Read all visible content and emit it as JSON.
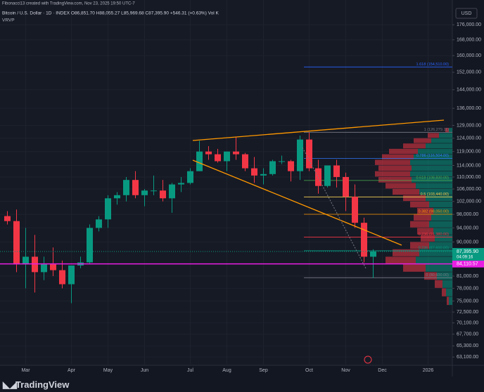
{
  "header": {
    "credit": "Fibonacci13 created with TradingView.com, Nov 23, 2025 19:50 UTC-7",
    "symbol": "Bitcoin / U.S. Dollar · 1D · INDEX  O86,851.70  H88,055.27  L85,969.68  C87,395.90  +546.31 (+0.63%)  Vol  K",
    "indicator": "VRVP",
    "currency": "USD",
    "brand": "TradingView"
  },
  "chart_data": {
    "type": "candlestick",
    "log_scale": true,
    "grid": true,
    "up_color": "#089981",
    "down_color": "#f23645",
    "categories": [
      null,
      null,
      "Mar",
      null,
      null,
      null,
      null,
      "Apr",
      null,
      null,
      null,
      "May",
      null,
      null,
      null,
      "Jun",
      null,
      null,
      null,
      null,
      "Jul",
      null,
      null,
      null,
      "Aug",
      null,
      null,
      null,
      "Sep",
      null,
      null,
      null,
      null,
      "Oct",
      null,
      null,
      null,
      "Nov",
      null,
      null,
      null,
      "Dec",
      null,
      null,
      null,
      null,
      "2026"
    ],
    "open": [
      97500,
      96000,
      84000,
      86000,
      82000,
      84000,
      82500,
      79000,
      83700,
      84500,
      94000,
      96500,
      103000,
      104000,
      109000,
      104000,
      105500,
      105500,
      103000,
      107500,
      108000,
      112000,
      119000,
      118000,
      115500,
      119000,
      118000,
      113000,
      110500,
      111000,
      115500,
      115500,
      112000,
      123500,
      113000,
      107000,
      114000,
      110000,
      103500,
      95500,
      86000,
      null,
      null,
      null,
      null,
      null,
      null
    ],
    "high": [
      99000,
      99500,
      94000,
      92000,
      86000,
      88500,
      85000,
      83000,
      86000,
      95000,
      97500,
      104000,
      105000,
      110000,
      112000,
      106000,
      110500,
      109000,
      108000,
      110000,
      113000,
      123000,
      121000,
      120000,
      119000,
      124500,
      118500,
      117000,
      113000,
      116000,
      117500,
      116000,
      125000,
      126200,
      116000,
      114000,
      116000,
      111500,
      107500,
      97000,
      88000,
      null,
      null,
      null,
      null,
      null,
      null
    ],
    "low": [
      95000,
      82000,
      78000,
      77000,
      80000,
      81000,
      78000,
      74500,
      83000,
      84000,
      93000,
      94000,
      101000,
      102000,
      103000,
      100500,
      104000,
      102000,
      98500,
      105000,
      107500,
      112000,
      116000,
      115000,
      112000,
      116000,
      112000,
      108000,
      107500,
      110500,
      114500,
      108500,
      109000,
      112000,
      104500,
      106500,
      106500,
      99000,
      94000,
      84500,
      80500,
      null,
      null,
      null,
      null,
      null,
      null
    ],
    "close": [
      96000,
      84000,
      86000,
      82000,
      84000,
      82500,
      79000,
      83700,
      84500,
      94000,
      96500,
      103000,
      104000,
      109000,
      104000,
      105500,
      105500,
      103000,
      107500,
      108000,
      112000,
      119000,
      118000,
      115500,
      119000,
      118000,
      113000,
      110500,
      111000,
      115500,
      115500,
      112000,
      123500,
      113000,
      107000,
      114000,
      110000,
      103500,
      95500,
      86000,
      87395.9,
      null,
      null,
      null,
      null,
      null,
      null
    ],
    "ylim": [
      61500,
      190000
    ],
    "yticks": [
      {
        "value": 176000,
        "label": "176,000.00"
      },
      {
        "value": 168000,
        "label": "168,000.00"
      },
      {
        "value": 160000,
        "label": "160,000.00"
      },
      {
        "value": 152000,
        "label": "152,000.00"
      },
      {
        "value": 144000,
        "label": "144,000.00"
      },
      {
        "value": 136000,
        "label": "136,000.00"
      },
      {
        "value": 129000,
        "label": "129,000.00"
      },
      {
        "value": 124000,
        "label": "124,000.00"
      },
      {
        "value": 119000,
        "label": "119,000.00"
      },
      {
        "value": 114000,
        "label": "114,000.00"
      },
      {
        "value": 110000,
        "label": "110,000.00"
      },
      {
        "value": 106000,
        "label": "106,000.00"
      },
      {
        "value": 102000,
        "label": "102,000.00"
      },
      {
        "value": 98000,
        "label": "98,000.00"
      },
      {
        "value": 94000,
        "label": "94,000.00"
      },
      {
        "value": 90000,
        "label": "90,000.00"
      },
      {
        "value": 81000,
        "label": "81,000.00"
      },
      {
        "value": 78000,
        "label": "78,000.00"
      },
      {
        "value": 75000,
        "label": "75,000.00"
      },
      {
        "value": 72500,
        "label": "72,500.00"
      },
      {
        "value": 70100,
        "label": "70,100.00"
      },
      {
        "value": 67700,
        "label": "67,700.00"
      },
      {
        "value": 65300,
        "label": "65,300.00"
      },
      {
        "value": 63100,
        "label": "63,100.00"
      }
    ],
    "fib_levels": [
      {
        "label": "1.618 (154,510.00)",
        "value": 154510,
        "color": "#2962ff"
      },
      {
        "label": "1 (126,279.11)",
        "value": 126279.11,
        "color": "#787b86"
      },
      {
        "label": "0.786 (116,504.00)",
        "value": 116504,
        "color": "#3179f5"
      },
      {
        "label": "0.618 (108,830.00)",
        "value": 108830,
        "color": "#4caf50"
      },
      {
        "label": "0.5 (103,440.00)",
        "value": 103440,
        "color": "#f7d154"
      },
      {
        "label": "0.382 (98,050.00)",
        "value": 98050,
        "color": "#ff9800"
      },
      {
        "label": "0.236 (91,380.00)",
        "value": 91380,
        "color": "#f23645"
      },
      {
        "label": "0.236 (87,600.00)",
        "value": 87600,
        "color": "#089981"
      },
      {
        "label": "0 (80,600.00)",
        "value": 80600,
        "color": "#787b86"
      }
    ],
    "last_price": {
      "value": 87395.9,
      "label": "87,395.90",
      "countdown": "04:09:16",
      "color": "#089981"
    },
    "support": {
      "value": 84110.57,
      "label": "84,110.57",
      "color": "#e91ee3"
    },
    "volume_profile": {
      "edges": [
        74000,
        76000,
        78000,
        80000,
        82000,
        84000,
        86000,
        88000,
        90000,
        92000,
        94000,
        96000,
        98000,
        100000,
        102000,
        104000,
        106000,
        108000,
        110000,
        112000,
        114000,
        116000,
        118000,
        120000,
        122000,
        124000,
        126000,
        128000
      ],
      "up": [
        5,
        9,
        14,
        22,
        38,
        52,
        47,
        33,
        25,
        27,
        33,
        30,
        27,
        33,
        38,
        47,
        52,
        58,
        60,
        58,
        60,
        55,
        49,
        38,
        30,
        19,
        5
      ],
      "down": [
        3,
        6,
        11,
        18,
        32,
        43,
        38,
        27,
        20,
        23,
        27,
        25,
        23,
        27,
        32,
        38,
        43,
        47,
        50,
        47,
        50,
        45,
        41,
        32,
        25,
        16,
        5
      ]
    }
  }
}
